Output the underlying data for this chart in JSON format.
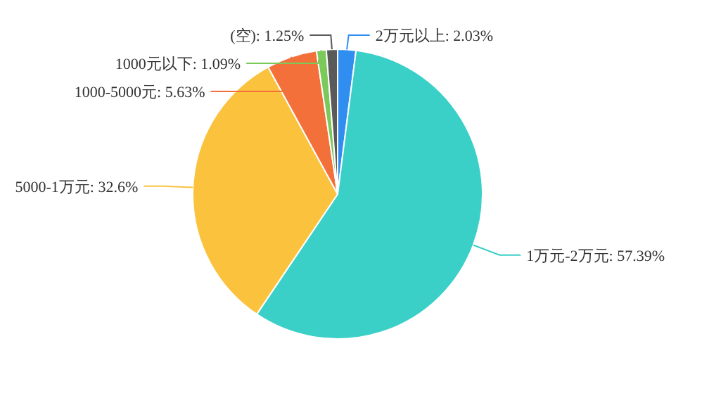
{
  "chart_data": {
    "type": "pie",
    "categories": [
      "2万元以上",
      "1万元-2万元",
      "5000-1万元",
      "1000-5000元",
      "1000元以下",
      "(空)"
    ],
    "values": [
      2.03,
      57.39,
      32.6,
      5.63,
      1.09,
      1.25
    ],
    "value_labels": [
      "2.03%",
      "57.39%",
      "32.6%",
      "5.63%",
      "1.09%",
      "1.25%"
    ],
    "colors": [
      "#2f8ef0",
      "#3ad0c8",
      "#fbc23e",
      "#f4703a",
      "#7bc95a",
      "#5a5a5a"
    ]
  }
}
